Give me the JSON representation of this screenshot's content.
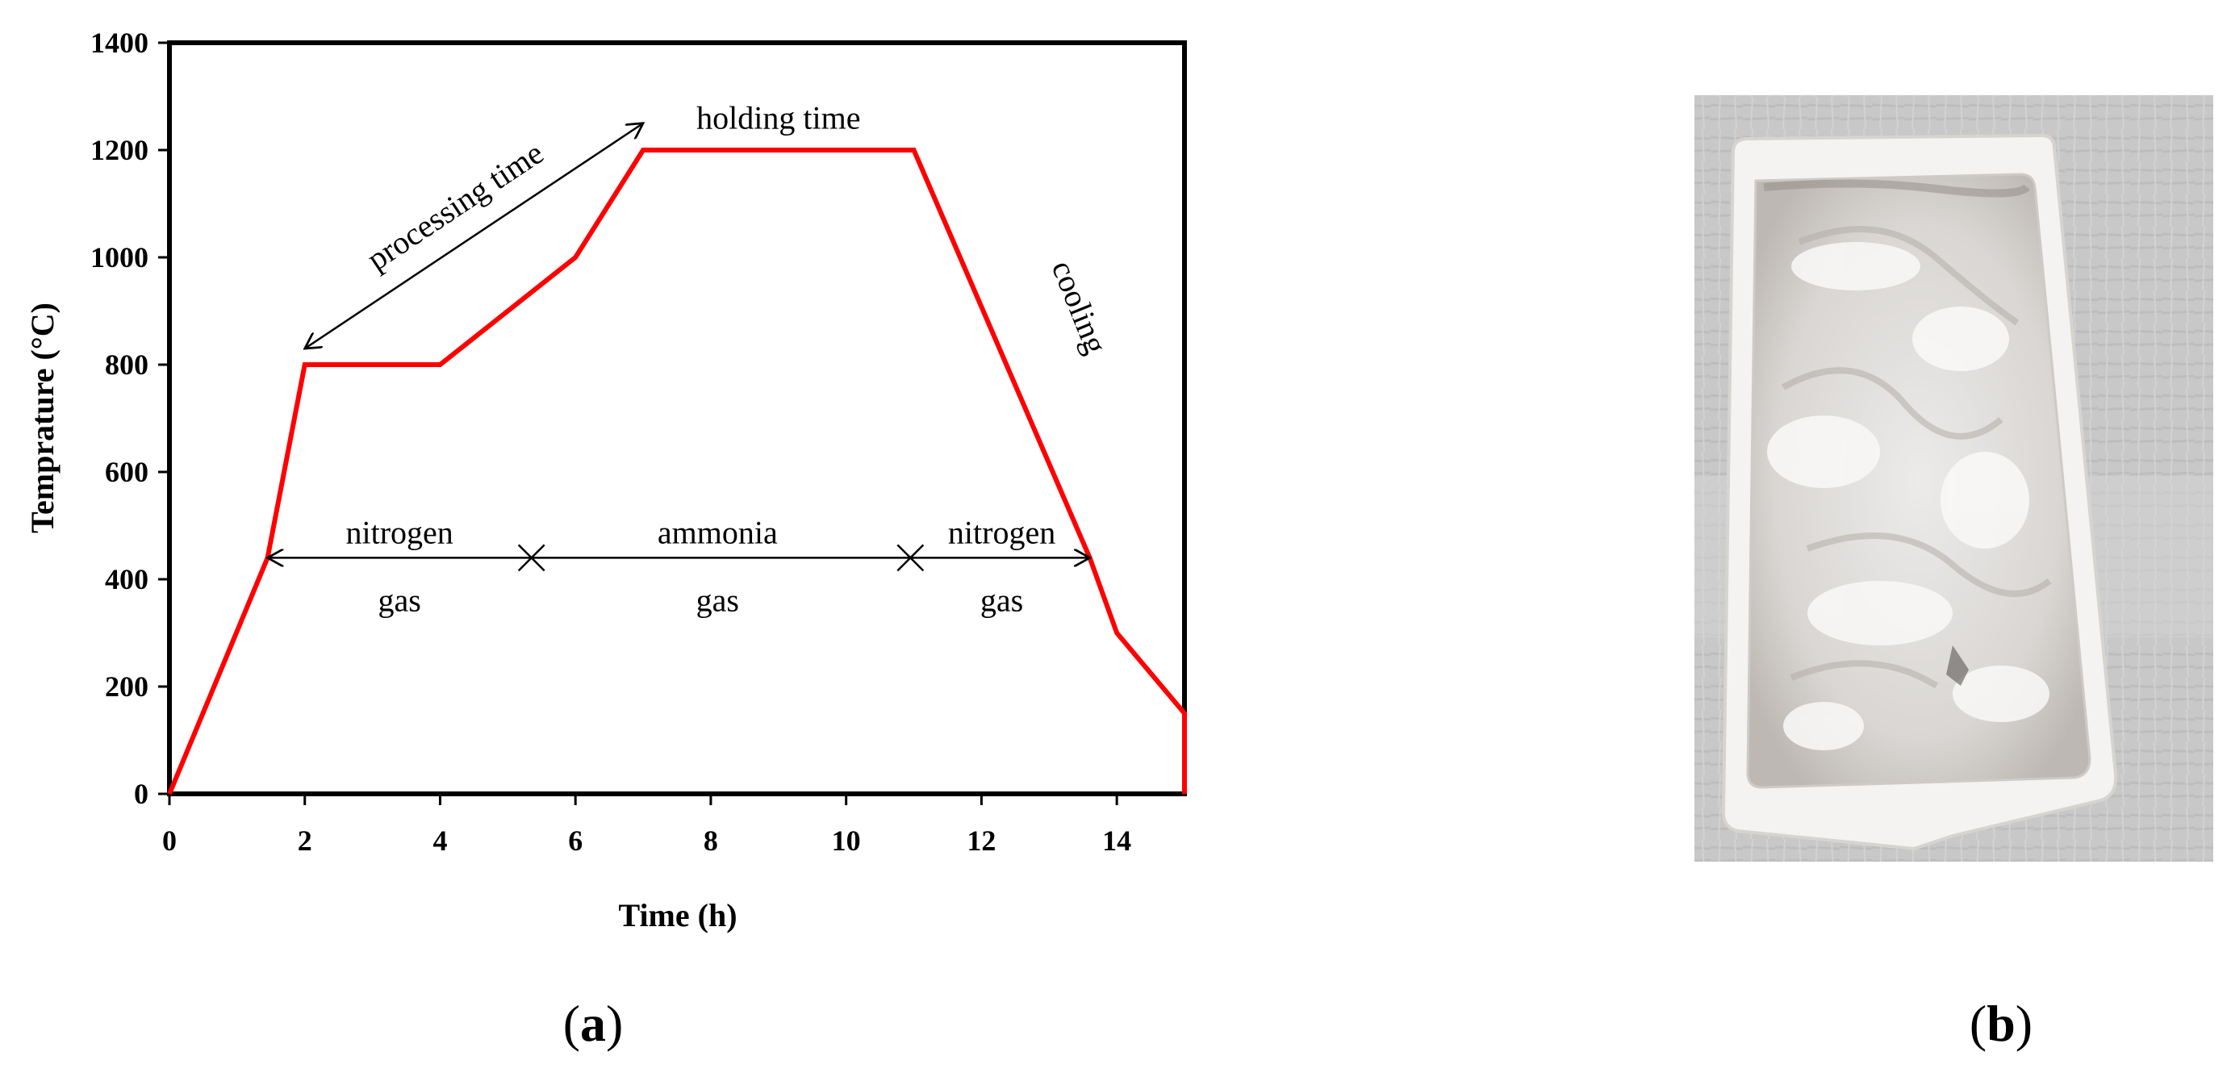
{
  "figure": {
    "panel_a_label": {
      "open": "(",
      "letter": "a",
      "close": ")"
    },
    "panel_b_label": {
      "open": "(",
      "letter": "b",
      "close": ")"
    },
    "photo": {
      "description_name": "ceramic boat with white powder"
    }
  },
  "chart_data": {
    "type": "line",
    "title": "",
    "xlabel": "Time (h)",
    "ylabel": "Temprature (°C)",
    "xlim": [
      0,
      15
    ],
    "ylim": [
      0,
      1400
    ],
    "xticks": [
      0,
      2,
      4,
      6,
      8,
      10,
      12,
      14
    ],
    "yticks": [
      0,
      200,
      400,
      600,
      800,
      1000,
      1200,
      1400
    ],
    "grid": false,
    "series": [
      {
        "name": "temperature profile",
        "color": "#ff0000",
        "x": [
          0,
          1.45,
          2,
          4,
          6,
          7,
          11,
          13.6,
          14,
          15,
          15
        ],
        "y": [
          0,
          440,
          800,
          800,
          1000,
          1200,
          1200,
          440,
          300,
          150,
          0
        ]
      }
    ],
    "annotations": {
      "processing_time": {
        "text": "processing time",
        "from": [
          2,
          830
        ],
        "to": [
          7,
          1250
        ]
      },
      "holding_time": {
        "text": "holding time",
        "at": [
          9,
          1240
        ]
      },
      "cooling": {
        "text": "cooling",
        "at": [
          13.3,
          900
        ]
      },
      "gas_line_y": 440,
      "gas_markers_x": [
        1.45,
        5.35,
        10.95,
        13.6
      ],
      "segments": [
        {
          "line1": "nitrogen",
          "line2": "gas",
          "x": 3.4
        },
        {
          "line1": "ammonia",
          "line2": "gas",
          "x": 8.1
        },
        {
          "line1": "nitrogen",
          "line2": "gas",
          "x": 12.3
        }
      ]
    }
  }
}
